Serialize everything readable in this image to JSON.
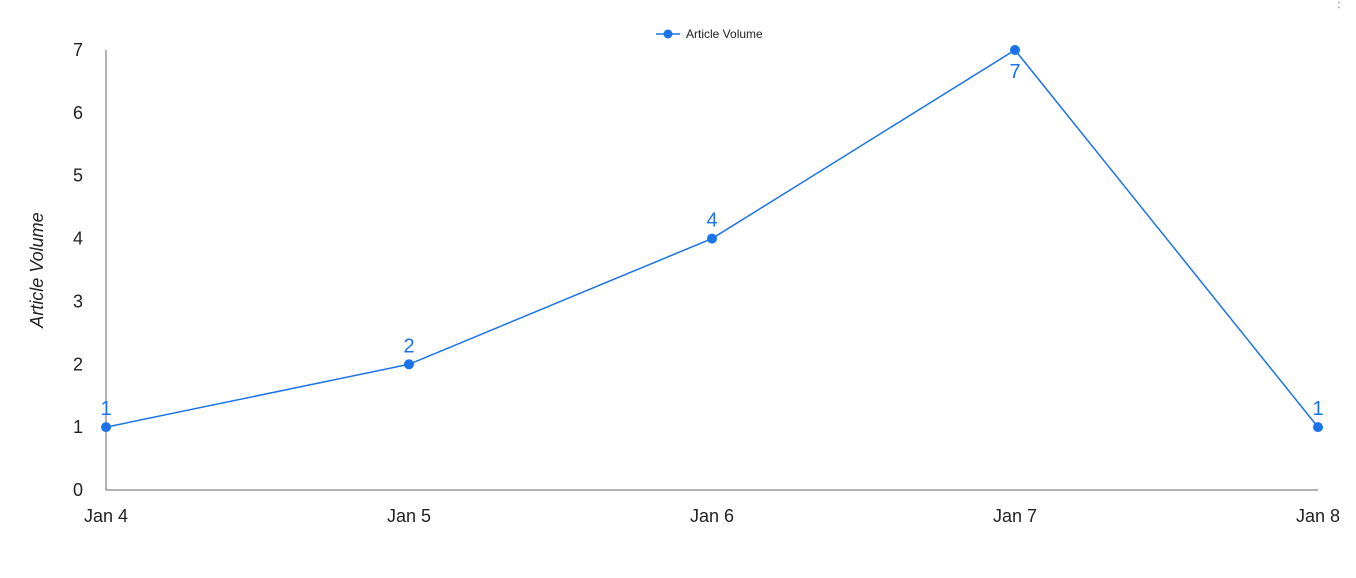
{
  "menu": {
    "icon": "more-vert-icon",
    "glyph": "⋮"
  },
  "colors": {
    "series": "#1a73e8",
    "axis": "#666666",
    "text": "#222222"
  },
  "chart_data": {
    "type": "line",
    "title": "",
    "xlabel": "",
    "ylabel": "Article Volume",
    "legend_position": "top-center",
    "grid": false,
    "ylim": [
      0,
      7
    ],
    "yticks": [
      0,
      1,
      2,
      3,
      4,
      5,
      6,
      7
    ],
    "categories": [
      "Jan 4",
      "Jan 5",
      "Jan 6",
      "Jan 7",
      "Jan 8"
    ],
    "series": [
      {
        "name": "Article Volume",
        "values": [
          1,
          2,
          4,
          7,
          1
        ],
        "data_labels": [
          "1",
          "2",
          "4",
          "7",
          "1"
        ],
        "marker": "circle"
      }
    ]
  }
}
